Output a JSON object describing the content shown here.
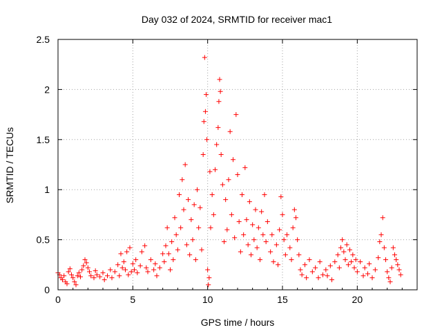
{
  "chart_data": {
    "type": "scatter",
    "title": "Day 032 of 2024, SRMTID for receiver mac1",
    "xlabel": "GPS time / hours",
    "ylabel": "SRMTID / TECUs",
    "xlim": [
      0,
      24
    ],
    "ylim": [
      0,
      2.5
    ],
    "x_ticks": [
      "0",
      "5",
      "10",
      "15",
      "20"
    ],
    "y_ticks": [
      "0",
      "0.5",
      "1",
      "1.5",
      "2",
      "2.5"
    ],
    "grid": true,
    "marker": "+",
    "series": [
      {
        "name": "SRMTID",
        "color": "#ff0000",
        "points": [
          [
            0.0,
            0.17
          ],
          [
            0.1,
            0.15
          ],
          [
            0.2,
            0.12
          ],
          [
            0.3,
            0.1
          ],
          [
            0.4,
            0.14
          ],
          [
            0.5,
            0.08
          ],
          [
            0.6,
            0.06
          ],
          [
            0.7,
            0.18
          ],
          [
            0.8,
            0.21
          ],
          [
            0.9,
            0.15
          ],
          [
            1.0,
            0.12
          ],
          [
            1.1,
            0.08
          ],
          [
            1.2,
            0.05
          ],
          [
            1.3,
            0.14
          ],
          [
            1.4,
            0.17
          ],
          [
            1.5,
            0.13
          ],
          [
            1.6,
            0.2
          ],
          [
            1.7,
            0.24
          ],
          [
            1.8,
            0.3
          ],
          [
            1.9,
            0.27
          ],
          [
            2.0,
            0.22
          ],
          [
            2.1,
            0.18
          ],
          [
            2.2,
            0.14
          ],
          [
            2.4,
            0.12
          ],
          [
            2.5,
            0.19
          ],
          [
            2.6,
            0.15
          ],
          [
            2.8,
            0.13
          ],
          [
            3.0,
            0.17
          ],
          [
            3.1,
            0.1
          ],
          [
            3.3,
            0.14
          ],
          [
            3.5,
            0.2
          ],
          [
            3.6,
            0.12
          ],
          [
            3.8,
            0.18
          ],
          [
            4.0,
            0.25
          ],
          [
            4.1,
            0.14
          ],
          [
            4.2,
            0.36
          ],
          [
            4.3,
            0.22
          ],
          [
            4.4,
            0.28
          ],
          [
            4.5,
            0.2
          ],
          [
            4.6,
            0.38
          ],
          [
            4.7,
            0.15
          ],
          [
            4.8,
            0.42
          ],
          [
            4.9,
            0.18
          ],
          [
            5.0,
            0.26
          ],
          [
            5.1,
            0.2
          ],
          [
            5.2,
            0.3
          ],
          [
            5.3,
            0.17
          ],
          [
            5.5,
            0.24
          ],
          [
            5.6,
            0.38
          ],
          [
            5.8,
            0.44
          ],
          [
            5.9,
            0.22
          ],
          [
            6.0,
            0.18
          ],
          [
            6.2,
            0.3
          ],
          [
            6.4,
            0.2
          ],
          [
            6.5,
            0.26
          ],
          [
            6.6,
            0.14
          ],
          [
            6.8,
            0.22
          ],
          [
            7.0,
            0.36
          ],
          [
            7.1,
            0.28
          ],
          [
            7.2,
            0.44
          ],
          [
            7.3,
            0.62
          ],
          [
            7.4,
            0.36
          ],
          [
            7.5,
            0.2
          ],
          [
            7.6,
            0.48
          ],
          [
            7.7,
            0.3
          ],
          [
            7.8,
            0.72
          ],
          [
            7.9,
            0.55
          ],
          [
            8.0,
            0.4
          ],
          [
            8.1,
            0.95
          ],
          [
            8.2,
            0.62
          ],
          [
            8.3,
            1.1
          ],
          [
            8.4,
            0.8
          ],
          [
            8.5,
            1.25
          ],
          [
            8.6,
            0.45
          ],
          [
            8.7,
            0.9
          ],
          [
            8.8,
            0.35
          ],
          [
            8.9,
            0.7
          ],
          [
            9.0,
            0.5
          ],
          [
            9.1,
            0.85
          ],
          [
            9.2,
            0.3
          ],
          [
            9.3,
            1.0
          ],
          [
            9.4,
            0.62
          ],
          [
            9.5,
            0.82
          ],
          [
            9.6,
            0.4
          ],
          [
            9.7,
            1.35
          ],
          [
            9.75,
            1.68
          ],
          [
            9.8,
            2.32
          ],
          [
            9.85,
            1.78
          ],
          [
            9.9,
            1.95
          ],
          [
            9.95,
            1.5
          ],
          [
            10.0,
            0.2
          ],
          [
            10.05,
            0.05
          ],
          [
            10.1,
            0.12
          ],
          [
            10.15,
            1.18
          ],
          [
            10.2,
            0.62
          ],
          [
            10.3,
            0.95
          ],
          [
            10.4,
            0.75
          ],
          [
            10.5,
            1.2
          ],
          [
            10.6,
            1.45
          ],
          [
            10.7,
            1.62
          ],
          [
            10.75,
            1.88
          ],
          [
            10.8,
            2.1
          ],
          [
            10.85,
            1.98
          ],
          [
            10.9,
            1.35
          ],
          [
            11.0,
            1.05
          ],
          [
            11.1,
            0.48
          ],
          [
            11.2,
            0.9
          ],
          [
            11.3,
            0.6
          ],
          [
            11.4,
            1.1
          ],
          [
            11.5,
            1.58
          ],
          [
            11.6,
            0.75
          ],
          [
            11.7,
            1.3
          ],
          [
            11.8,
            0.52
          ],
          [
            11.9,
            1.75
          ],
          [
            12.0,
            1.15
          ],
          [
            12.1,
            0.68
          ],
          [
            12.2,
            0.38
          ],
          [
            12.3,
            0.95
          ],
          [
            12.4,
            0.55
          ],
          [
            12.5,
            1.22
          ],
          [
            12.6,
            0.7
          ],
          [
            12.7,
            0.45
          ],
          [
            12.8,
            0.88
          ],
          [
            12.9,
            0.35
          ],
          [
            13.0,
            0.65
          ],
          [
            13.1,
            0.5
          ],
          [
            13.2,
            0.8
          ],
          [
            13.3,
            0.42
          ],
          [
            13.4,
            0.62
          ],
          [
            13.5,
            0.3
          ],
          [
            13.6,
            0.78
          ],
          [
            13.7,
            0.55
          ],
          [
            13.8,
            0.95
          ],
          [
            13.9,
            0.48
          ],
          [
            14.0,
            0.68
          ],
          [
            14.2,
            0.38
          ],
          [
            14.3,
            0.55
          ],
          [
            14.4,
            0.28
          ],
          [
            14.6,
            0.45
          ],
          [
            14.7,
            0.25
          ],
          [
            14.8,
            0.6
          ],
          [
            14.9,
            0.93
          ],
          [
            15.0,
            0.75
          ],
          [
            15.1,
            0.5
          ],
          [
            15.2,
            0.35
          ],
          [
            15.3,
            0.55
          ],
          [
            15.5,
            0.42
          ],
          [
            15.6,
            0.3
          ],
          [
            15.7,
            0.62
          ],
          [
            15.8,
            0.8
          ],
          [
            15.9,
            0.72
          ],
          [
            16.0,
            0.5
          ],
          [
            16.1,
            0.35
          ],
          [
            16.2,
            0.2
          ],
          [
            16.3,
            0.15
          ],
          [
            16.5,
            0.25
          ],
          [
            16.6,
            0.12
          ],
          [
            16.8,
            0.3
          ],
          [
            17.0,
            0.18
          ],
          [
            17.2,
            0.22
          ],
          [
            17.4,
            0.12
          ],
          [
            17.5,
            0.28
          ],
          [
            17.7,
            0.15
          ],
          [
            17.9,
            0.2
          ],
          [
            18.0,
            0.14
          ],
          [
            18.2,
            0.24
          ],
          [
            18.3,
            0.1
          ],
          [
            18.5,
            0.28
          ],
          [
            18.7,
            0.35
          ],
          [
            18.8,
            0.22
          ],
          [
            18.9,
            0.42
          ],
          [
            19.0,
            0.5
          ],
          [
            19.1,
            0.38
          ],
          [
            19.2,
            0.3
          ],
          [
            19.3,
            0.45
          ],
          [
            19.4,
            0.25
          ],
          [
            19.5,
            0.4
          ],
          [
            19.6,
            0.28
          ],
          [
            19.7,
            0.35
          ],
          [
            19.8,
            0.22
          ],
          [
            19.9,
            0.3
          ],
          [
            20.0,
            0.18
          ],
          [
            20.2,
            0.28
          ],
          [
            20.4,
            0.14
          ],
          [
            20.5,
            0.22
          ],
          [
            20.7,
            0.16
          ],
          [
            20.8,
            0.26
          ],
          [
            21.0,
            0.12
          ],
          [
            21.2,
            0.2
          ],
          [
            21.4,
            0.32
          ],
          [
            21.5,
            0.48
          ],
          [
            21.6,
            0.55
          ],
          [
            21.7,
            0.72
          ],
          [
            21.8,
            0.42
          ],
          [
            21.9,
            0.3
          ],
          [
            22.0,
            0.18
          ],
          [
            22.1,
            0.12
          ],
          [
            22.2,
            0.08
          ],
          [
            22.3,
            0.22
          ],
          [
            22.4,
            0.42
          ],
          [
            22.5,
            0.35
          ],
          [
            22.6,
            0.3
          ],
          [
            22.7,
            0.25
          ],
          [
            22.8,
            0.2
          ],
          [
            22.9,
            0.15
          ]
        ]
      }
    ]
  }
}
